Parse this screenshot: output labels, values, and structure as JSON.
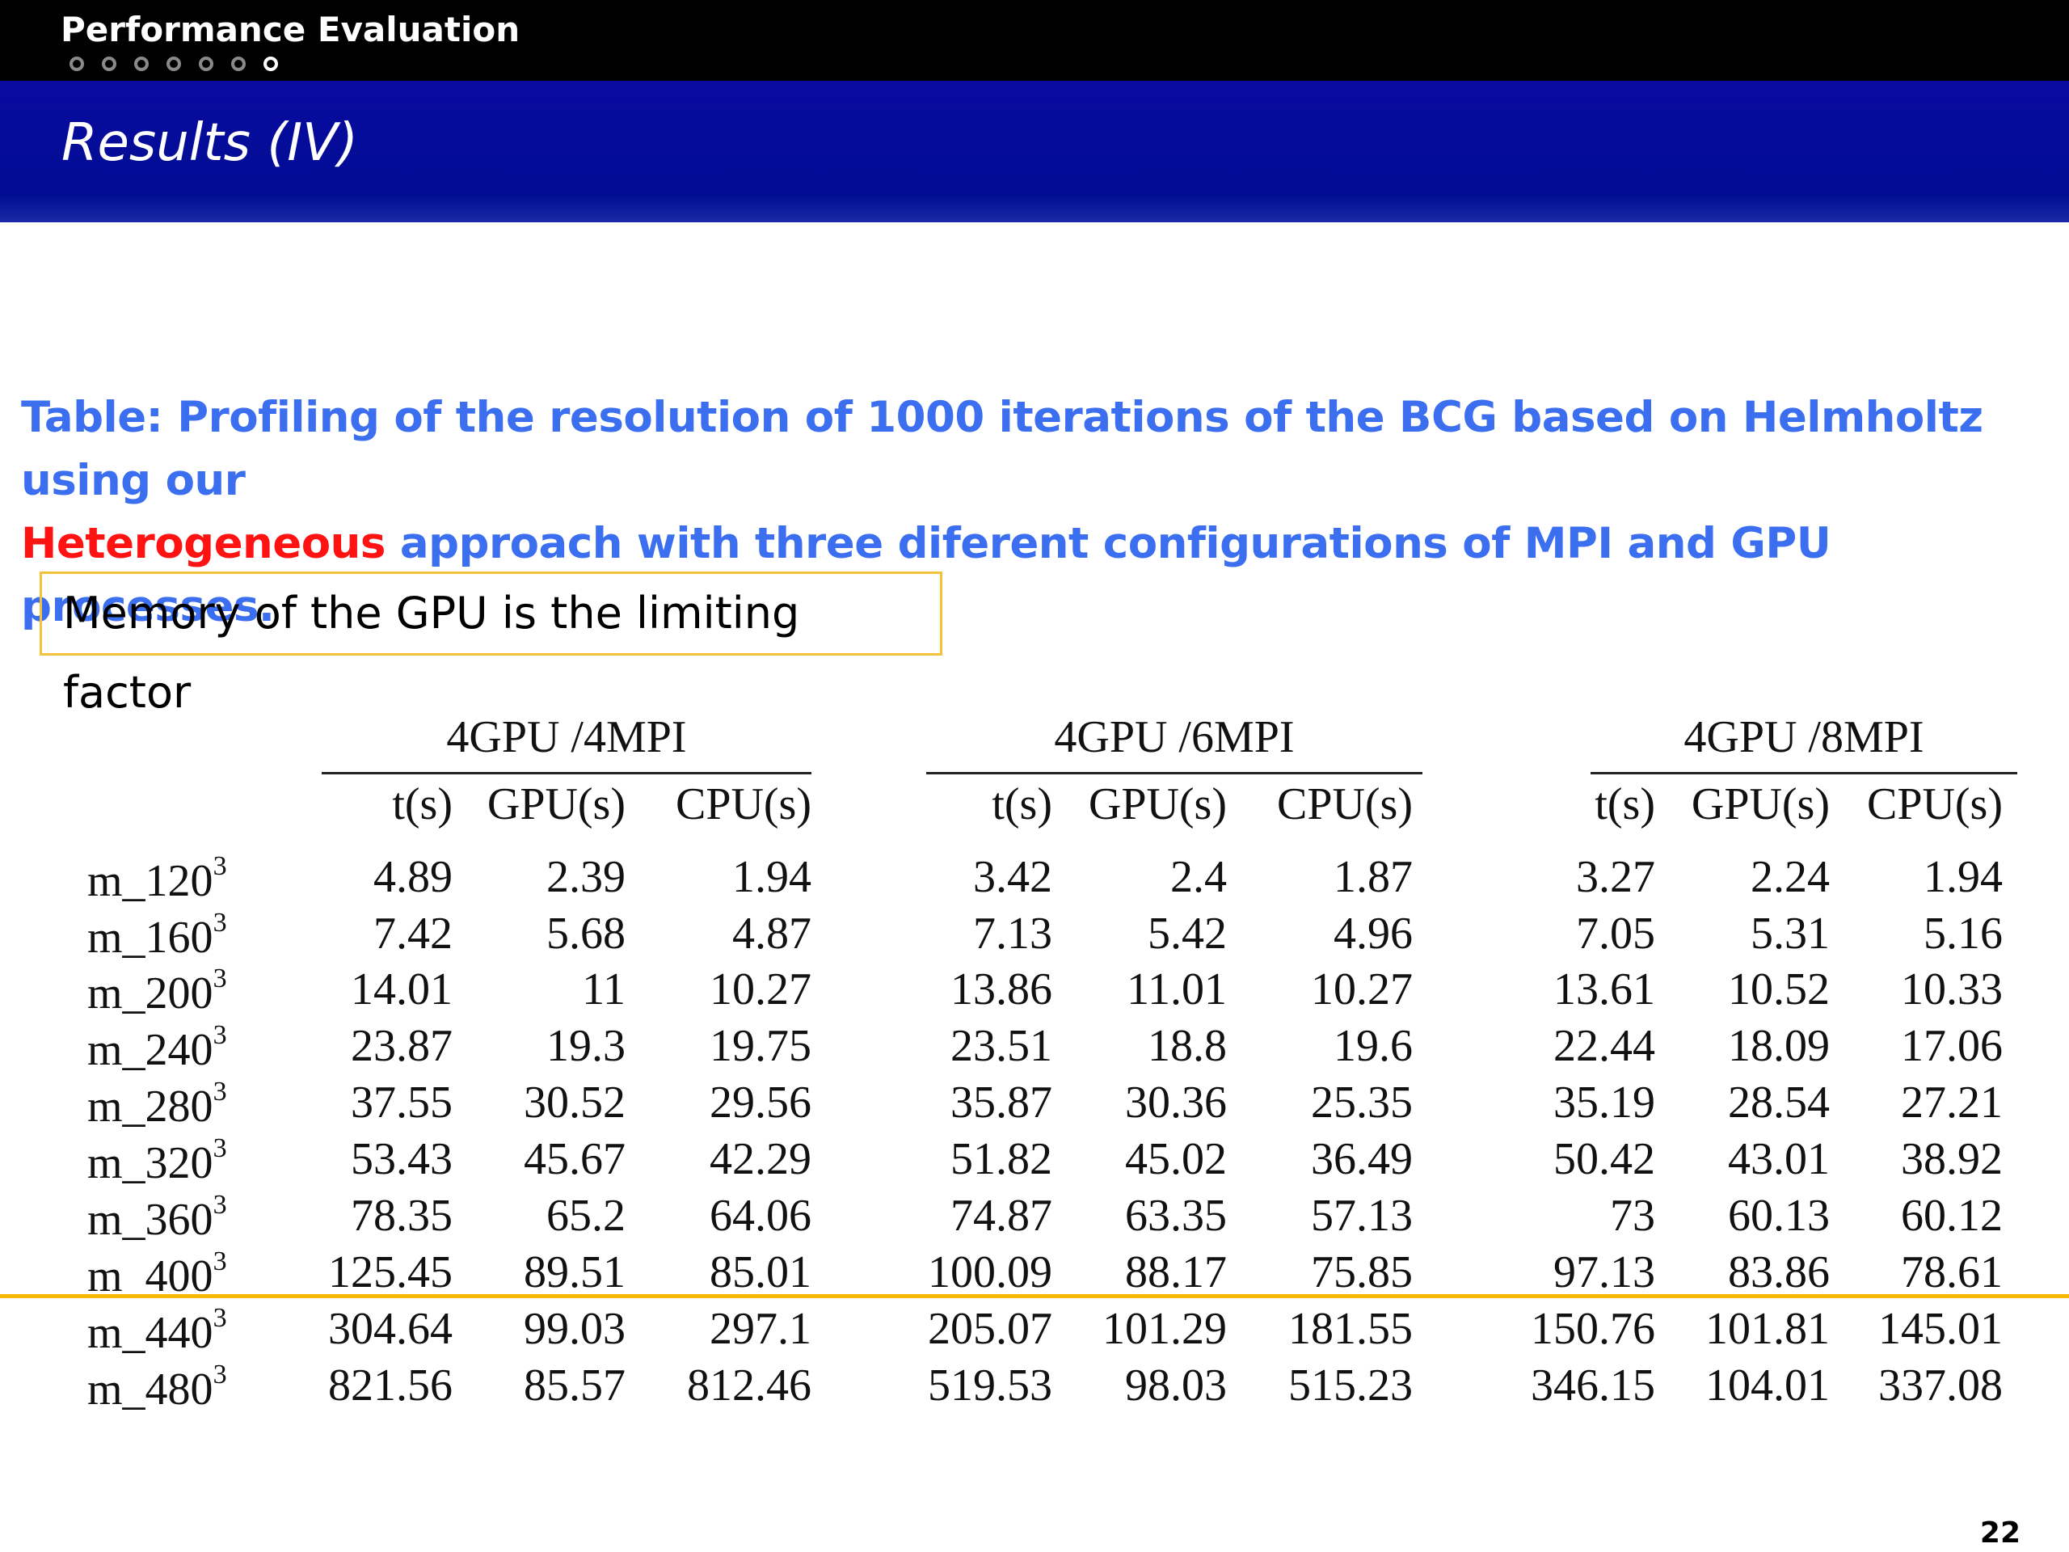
{
  "header": {
    "section_title": "Performance Evaluation",
    "nav_dots_total": 7,
    "nav_dots_active_index": 6,
    "slide_title": "Results (IV)"
  },
  "caption": {
    "part1": "Table: Profiling of the resolution of 1000 iterations of the BCG based on Helmholtz using our",
    "highlight": "Heterogeneous",
    "part2": " approach with three diferent configurations of MPI and GPU processes."
  },
  "callout": "Memory of the GPU is the limiting factor",
  "table": {
    "groups": [
      "4GPU /4MPI",
      "4GPU /6MPI",
      "4GPU /8MPI"
    ],
    "columns": [
      "t(s)",
      "GPU(s)",
      "CPU(s)"
    ],
    "rows": [
      {
        "label": "m_120",
        "exp": "3",
        "values": [
          "4.89",
          "2.39",
          "1.94",
          "3.42",
          "2.4",
          "1.87",
          "3.27",
          "2.24",
          "1.94"
        ]
      },
      {
        "label": "m_160",
        "exp": "3",
        "values": [
          "7.42",
          "5.68",
          "4.87",
          "7.13",
          "5.42",
          "4.96",
          "7.05",
          "5.31",
          "5.16"
        ]
      },
      {
        "label": "m_200",
        "exp": "3",
        "values": [
          "14.01",
          "11",
          "10.27",
          "13.86",
          "11.01",
          "10.27",
          "13.61",
          "10.52",
          "10.33"
        ]
      },
      {
        "label": "m_240",
        "exp": "3",
        "values": [
          "23.87",
          "19.3",
          "19.75",
          "23.51",
          "18.8",
          "19.6",
          "22.44",
          "18.09",
          "17.06"
        ]
      },
      {
        "label": "m_280",
        "exp": "3",
        "values": [
          "37.55",
          "30.52",
          "29.56",
          "35.87",
          "30.36",
          "25.35",
          "35.19",
          "28.54",
          "27.21"
        ]
      },
      {
        "label": "m_320",
        "exp": "3",
        "values": [
          "53.43",
          "45.67",
          "42.29",
          "51.82",
          "45.02",
          "36.49",
          "50.42",
          "43.01",
          "38.92"
        ]
      },
      {
        "label": "m_360",
        "exp": "3",
        "values": [
          "78.35",
          "65.2",
          "64.06",
          "74.87",
          "63.35",
          "57.13",
          "73",
          "60.13",
          "60.12"
        ]
      },
      {
        "label": "m_400",
        "exp": "3",
        "values": [
          "125.45",
          "89.51",
          "85.01",
          "100.09",
          "88.17",
          "75.85",
          "97.13",
          "83.86",
          "78.61"
        ]
      },
      {
        "label": "m_440",
        "exp": "3",
        "values": [
          "304.64",
          "99.03",
          "297.1",
          "205.07",
          "101.29",
          "181.55",
          "150.76",
          "101.81",
          "145.01"
        ]
      },
      {
        "label": "m_480",
        "exp": "3",
        "values": [
          "821.56",
          "85.57",
          "812.46",
          "519.53",
          "98.03",
          "515.23",
          "346.15",
          "104.01",
          "337.08"
        ]
      }
    ]
  },
  "colors": {
    "title_bar": "#000d93",
    "caption": "#3b6ff0",
    "highlight": "#ff1212",
    "callout_border": "#f3c13a",
    "limit_line": "#f7b800"
  },
  "page_number": "22"
}
